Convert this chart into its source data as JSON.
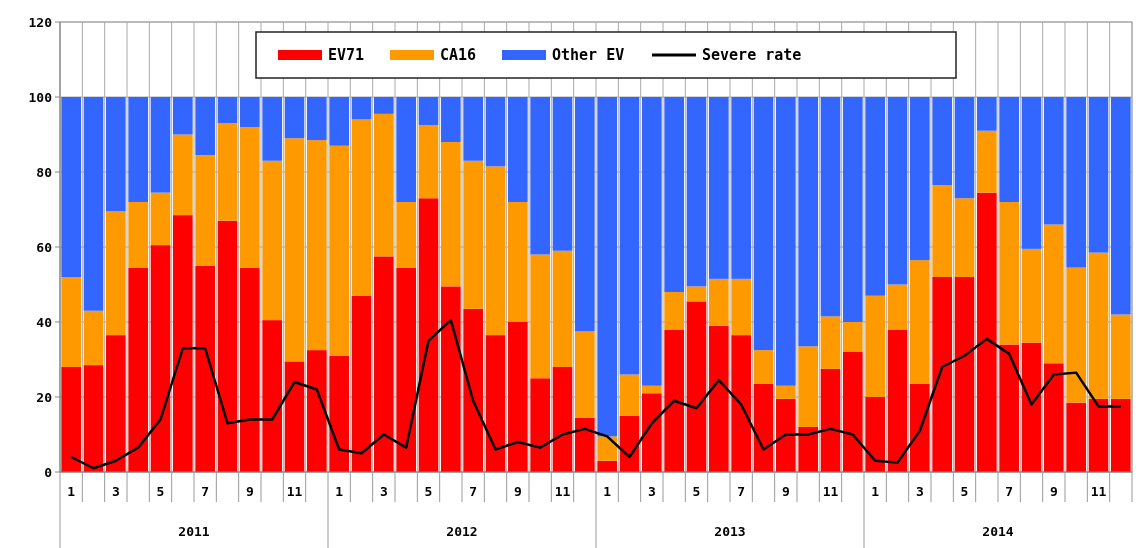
{
  "chart_data": {
    "type": "bar",
    "stacked": true,
    "categories": [
      "1",
      null,
      "3",
      null,
      "5",
      null,
      "7",
      null,
      "9",
      null,
      "11",
      null,
      "1",
      null,
      "3",
      null,
      "5",
      null,
      "7",
      null,
      "9",
      null,
      "11",
      null,
      "1",
      null,
      "3",
      null,
      "5",
      null,
      "7",
      null,
      "9",
      null,
      "11",
      null,
      "1",
      null,
      "3",
      null,
      "5",
      null,
      "7",
      null,
      "9",
      null,
      "11",
      null
    ],
    "series": [
      {
        "name": "EV71",
        "color": "#ff0000",
        "values": [
          28,
          28.5,
          36.5,
          54.5,
          60.5,
          68.5,
          55,
          67,
          54.5,
          40.5,
          29.5,
          32.5,
          31,
          47,
          57.5,
          54.5,
          73,
          49.5,
          43.5,
          36.5,
          40,
          25,
          28,
          14.5,
          3,
          15,
          21,
          38,
          45.5,
          39,
          36.5,
          23.5,
          19.5,
          12,
          27.5,
          32,
          20,
          38,
          23.5,
          52,
          52,
          74.5,
          34,
          34.5,
          29,
          18.5,
          19.5,
          19.5
        ]
      },
      {
        "name": "CA16",
        "color": "#ff9900",
        "values": [
          24,
          14.5,
          33,
          17.5,
          14,
          21.5,
          29.5,
          26,
          37.5,
          42.5,
          59.5,
          56,
          56,
          47,
          38,
          17.5,
          19.5,
          38.5,
          39.5,
          45,
          32,
          33,
          31,
          23,
          6.5,
          11,
          2,
          10,
          4,
          12.5,
          15,
          9,
          3.5,
          21.5,
          14,
          8,
          27,
          12,
          33,
          24.5,
          21,
          16.5,
          38,
          25,
          37,
          36,
          39,
          22.5
        ]
      },
      {
        "name": "Other EV",
        "color": "#3366ff",
        "values": [
          48,
          57,
          30.5,
          28,
          25.5,
          10,
          15.5,
          7,
          8,
          17,
          11,
          11.5,
          13,
          6,
          4.5,
          28,
          7.5,
          12,
          17,
          18.5,
          28,
          42,
          41,
          62.5,
          90.5,
          74,
          77,
          52,
          50.5,
          48.5,
          48.5,
          67.5,
          77,
          66.5,
          58.5,
          60,
          53,
          50,
          43.5,
          23.5,
          27,
          9,
          28,
          40.5,
          34,
          45.5,
          41.5,
          58
        ]
      },
      {
        "name": "Severe rate",
        "type": "line",
        "color": "#000000",
        "values": [
          4,
          1,
          3,
          6.5,
          14,
          33,
          33,
          13,
          14,
          14,
          24,
          22,
          6,
          5,
          10,
          6.5,
          35,
          40.5,
          19,
          6,
          8,
          6.5,
          10,
          11.5,
          9.5,
          4,
          13,
          19,
          17,
          24.5,
          18,
          6,
          10,
          10,
          11.5,
          10,
          3,
          2.5,
          11,
          28,
          31,
          35.5,
          31.5,
          18,
          26,
          26.5,
          17.5,
          17.5
        ]
      }
    ],
    "ylim": [
      0,
      120
    ],
    "yticks": [
      0,
      20,
      40,
      60,
      80,
      100,
      120
    ],
    "grid": true,
    "legend": "top",
    "marker": "none",
    "annotations": [
      "2011",
      "2012",
      "2013",
      "2014"
    ]
  }
}
